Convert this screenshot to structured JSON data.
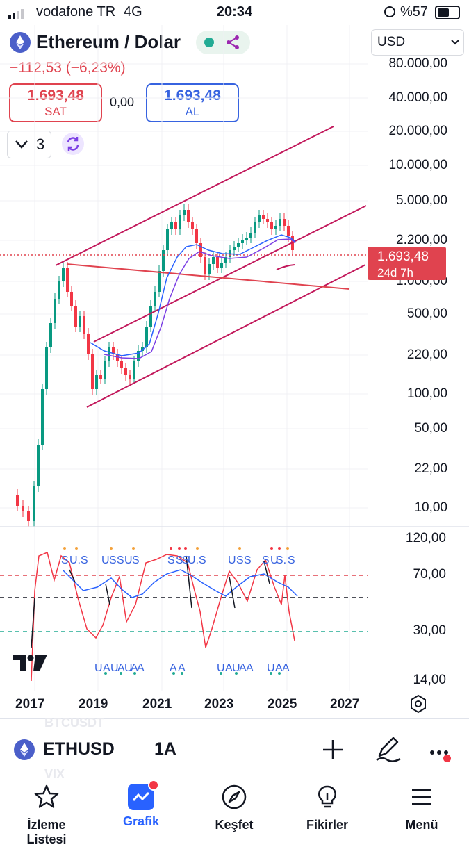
{
  "status_bar": {
    "carrier": "vodafone TR",
    "network": "4G",
    "time": "20:34",
    "battery": "%57"
  },
  "header": {
    "title": "Ethereum / Dolar",
    "change": "−112,53 (−6,23%)",
    "sell": {
      "value": "1.693,48",
      "label": "SAT"
    },
    "spread": "0,00",
    "buy": {
      "value": "1.693,48",
      "label": "AL"
    },
    "currency": "USD",
    "indicator_count": "3"
  },
  "price_axis": [
    "80.000,00",
    "40.000,00",
    "20.000,00",
    "10.000,00",
    "5.000,00",
    "2.200,00",
    "1.000,00",
    "500,00",
    "220,00",
    "100,00",
    "50,00",
    "22,00",
    "10,00"
  ],
  "price_tag": {
    "price": "1.693,48",
    "countdown": "24d 7h"
  },
  "osc_axis": [
    "120,00",
    "70,00",
    "30,00",
    "14,00"
  ],
  "time_axis": [
    "2017",
    "2019",
    "2021",
    "2023",
    "2025",
    "2027"
  ],
  "watermarks": {
    "symbol": "BTCUSDT",
    "vix": "VIX"
  },
  "symbol_bar": {
    "symbol": "ETHUSD",
    "interval": "1A"
  },
  "bottom_nav": [
    {
      "label": "İzleme Listesi"
    },
    {
      "label": "Grafik"
    },
    {
      "label": "Keşfet"
    },
    {
      "label": "Fikirler"
    },
    {
      "label": "Menü"
    }
  ],
  "colors": {
    "up": "#089981",
    "down": "#f23645",
    "accent": "#2962ff",
    "channel": "#c2185b"
  }
}
